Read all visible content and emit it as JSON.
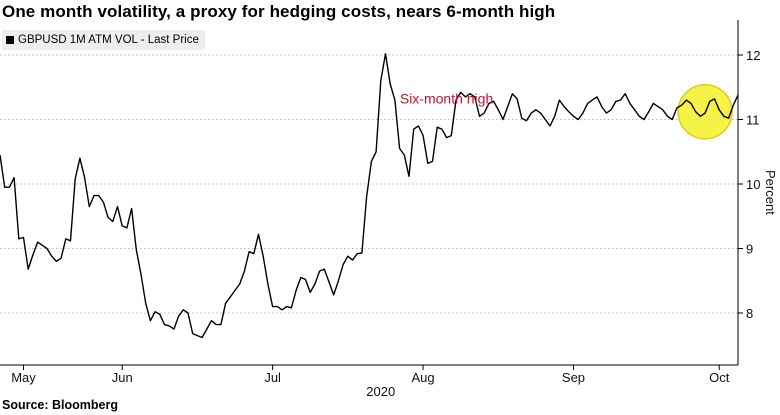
{
  "title": "One month volatility, a proxy for hedging costs, nears 6-month high",
  "source": "Source: Bloomberg",
  "colors": {
    "line": "#000000",
    "grid": "#bbbbbb",
    "annotation_text": "#c8102e",
    "highlight_fill": "#f7f132",
    "highlight_stroke": "#d9c800"
  },
  "chart_data": {
    "type": "line",
    "ylabel": "Percent",
    "year_label": "2020",
    "ylim": [
      7.5,
      12.5
    ],
    "y_ticks": [
      8,
      9,
      10,
      11,
      12
    ],
    "xlim": [
      0,
      157
    ],
    "x_ticks": [
      {
        "label": "May",
        "x": 5
      },
      {
        "label": "Jun",
        "x": 26
      },
      {
        "label": "Jul",
        "x": 58
      },
      {
        "label": "Aug",
        "x": 90
      },
      {
        "label": "Sep",
        "x": 122
      },
      {
        "label": "Oct",
        "x": 153
      }
    ],
    "grid": true,
    "legend": "top-left",
    "annotations": [
      {
        "text": "Six-month high",
        "x": 95,
        "y": 11.25
      }
    ],
    "highlight": {
      "x": 150,
      "y": 11.12
    },
    "series": [
      {
        "name": "GBPUSD 1M ATM VOL - Last Price",
        "x": [
          0,
          1,
          2,
          3,
          4,
          5,
          6,
          7,
          8,
          9,
          10,
          11,
          12,
          13,
          14,
          15,
          16,
          17,
          18,
          19,
          20,
          21,
          22,
          23,
          24,
          25,
          26,
          27,
          28,
          29,
          30,
          31,
          32,
          33,
          34,
          35,
          36,
          37,
          38,
          39,
          40,
          41,
          42,
          43,
          44,
          45,
          46,
          47,
          48,
          49,
          50,
          51,
          52,
          53,
          54,
          55,
          56,
          57,
          58,
          59,
          60,
          61,
          62,
          63,
          64,
          65,
          66,
          67,
          68,
          69,
          70,
          71,
          72,
          73,
          74,
          75,
          76,
          77,
          78,
          79,
          80,
          81,
          82,
          83,
          84,
          85,
          86,
          87,
          88,
          89,
          90,
          91,
          92,
          93,
          94,
          95,
          96,
          97,
          98,
          99,
          100,
          101,
          102,
          103,
          104,
          105,
          106,
          107,
          108,
          109,
          110,
          111,
          112,
          113,
          114,
          115,
          116,
          117,
          118,
          119,
          120,
          121,
          122,
          123,
          124,
          125,
          126,
          127,
          128,
          129,
          130,
          131,
          132,
          133,
          134,
          135,
          136,
          137,
          138,
          139,
          140,
          141,
          142,
          143,
          144,
          145,
          146,
          147,
          148,
          149,
          150,
          151,
          152,
          153,
          154,
          155,
          156,
          157
        ],
        "values": [
          10.45,
          9.95,
          9.95,
          10.1,
          9.15,
          9.17,
          8.68,
          8.9,
          9.1,
          9.05,
          9.0,
          8.88,
          8.8,
          8.85,
          9.15,
          9.12,
          10.08,
          10.4,
          10.1,
          9.65,
          9.82,
          9.82,
          9.72,
          9.48,
          9.42,
          9.65,
          9.35,
          9.32,
          9.62,
          8.98,
          8.6,
          8.15,
          7.88,
          8.02,
          7.98,
          7.82,
          7.8,
          7.75,
          7.95,
          8.05,
          8.0,
          7.68,
          7.65,
          7.62,
          7.75,
          7.88,
          7.82,
          7.82,
          8.15,
          8.25,
          8.35,
          8.45,
          8.65,
          8.95,
          8.92,
          9.22,
          8.88,
          8.45,
          8.1,
          8.1,
          8.05,
          8.1,
          8.08,
          8.35,
          8.55,
          8.52,
          8.32,
          8.45,
          8.65,
          8.68,
          8.48,
          8.28,
          8.5,
          8.75,
          8.88,
          8.82,
          8.92,
          8.93,
          9.8,
          10.35,
          10.5,
          11.6,
          12.02,
          11.55,
          11.3,
          10.55,
          10.45,
          10.12,
          10.85,
          10.9,
          10.75,
          10.32,
          10.35,
          10.88,
          10.85,
          10.72,
          10.75,
          11.3,
          11.42,
          11.35,
          11.4,
          11.35,
          11.05,
          11.1,
          11.25,
          11.28,
          11.15,
          11.0,
          11.2,
          11.4,
          11.32,
          11.02,
          10.98,
          11.1,
          11.15,
          11.1,
          11.0,
          10.9,
          11.05,
          11.3,
          11.2,
          11.12,
          11.05,
          11.0,
          11.1,
          11.25,
          11.3,
          11.35,
          11.2,
          11.1,
          11.15,
          11.28,
          11.3,
          11.4,
          11.25,
          11.15,
          11.05,
          11.0,
          11.12,
          11.25,
          11.2,
          11.15,
          11.05,
          11.0,
          11.18,
          11.22,
          11.3,
          11.25,
          11.12,
          11.05,
          11.1,
          11.28,
          11.32,
          11.15,
          11.05,
          11.02,
          11.22,
          11.38
        ]
      }
    ]
  }
}
